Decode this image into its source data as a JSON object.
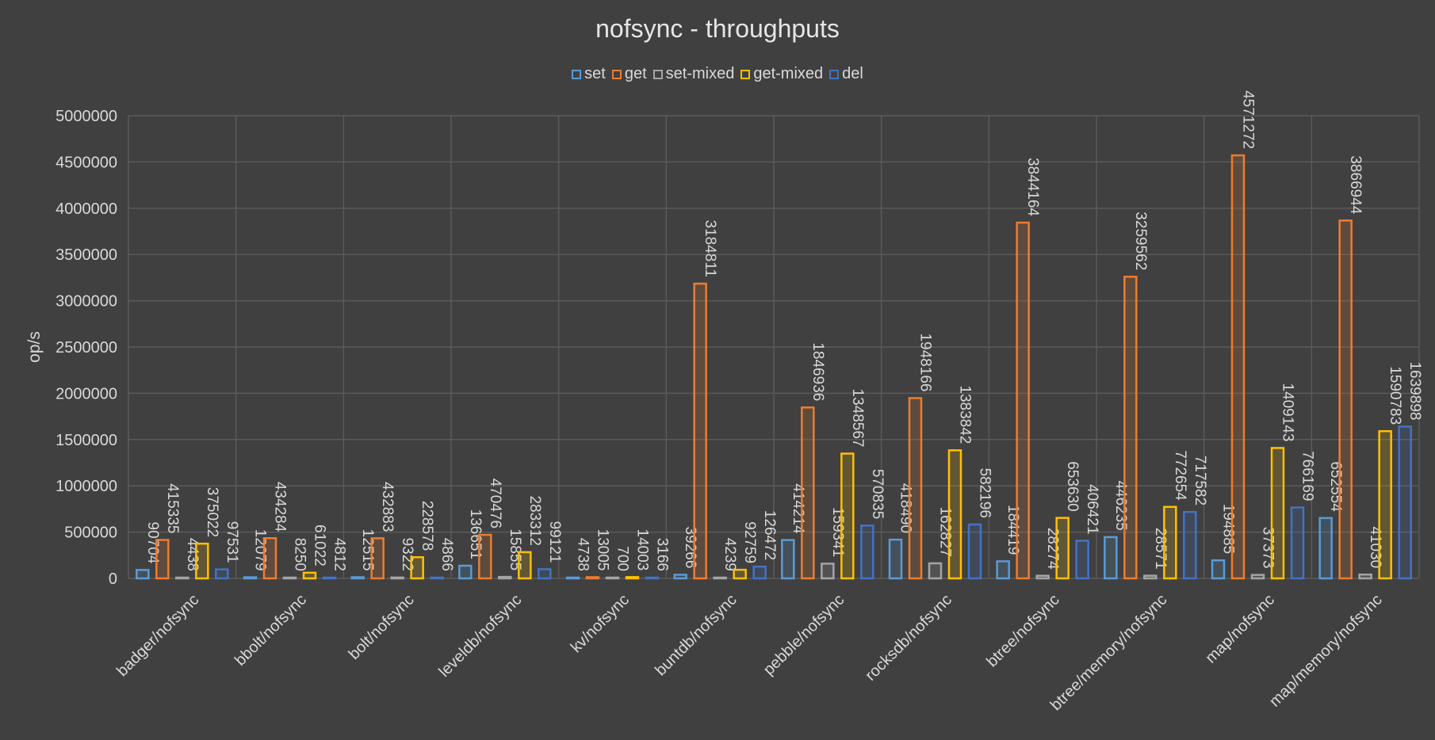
{
  "chart_data": {
    "type": "bar",
    "title": "nofsync - throughputs",
    "xlabel": "",
    "ylabel": "op/s",
    "ylim": [
      0,
      5000000
    ],
    "yticks": [
      "0",
      "500000",
      "1000000",
      "1500000",
      "2000000",
      "2500000",
      "3000000",
      "3500000",
      "4000000",
      "4500000",
      "5000000"
    ],
    "grid": true,
    "legend_position": "top",
    "categories": [
      "badger/nofsync",
      "bbolt/nofsync",
      "bolt/nofsync",
      "leveldb/nofsync",
      "kv/nofsync",
      "buntdb/nofsync",
      "pebble/nofsync",
      "rocksdb/nofsync",
      "btree/nofsync",
      "btree/memory/nofsync",
      "map/nofsync",
      "map/memory/nofsync"
    ],
    "series": [
      {
        "name": "set",
        "color": "#5b9bd5",
        "values": [
          90704,
          12079,
          12515,
          136651,
          4738,
          39266,
          414214,
          418490,
          184419,
          446235,
          194885,
          652554
        ]
      },
      {
        "name": "get",
        "color": "#ed7d31",
        "values": [
          415335,
          434284,
          432883,
          470476,
          13005,
          3184811,
          1846936,
          1948166,
          3844164,
          3259562,
          4571272,
          3866944
        ]
      },
      {
        "name": "set-mixed",
        "color": "#a5a5a5",
        "values": [
          4438,
          8250,
          9322,
          15855,
          700,
          4239,
          159341,
          162827,
          28274,
          28571,
          37373,
          41030
        ]
      },
      {
        "name": "get-mixed",
        "color": "#ffc000",
        "values": [
          375022,
          61022,
          228578,
          283312,
          14003,
          92759,
          1348567,
          1383842,
          653630,
          772654,
          1409143,
          1590783
        ]
      },
      {
        "name": "del",
        "color": "#4472c4",
        "values": [
          97531,
          4812,
          4866,
          99121,
          3166,
          126472,
          570835,
          582196,
          406421,
          717582,
          766169,
          1639898
        ]
      }
    ]
  }
}
